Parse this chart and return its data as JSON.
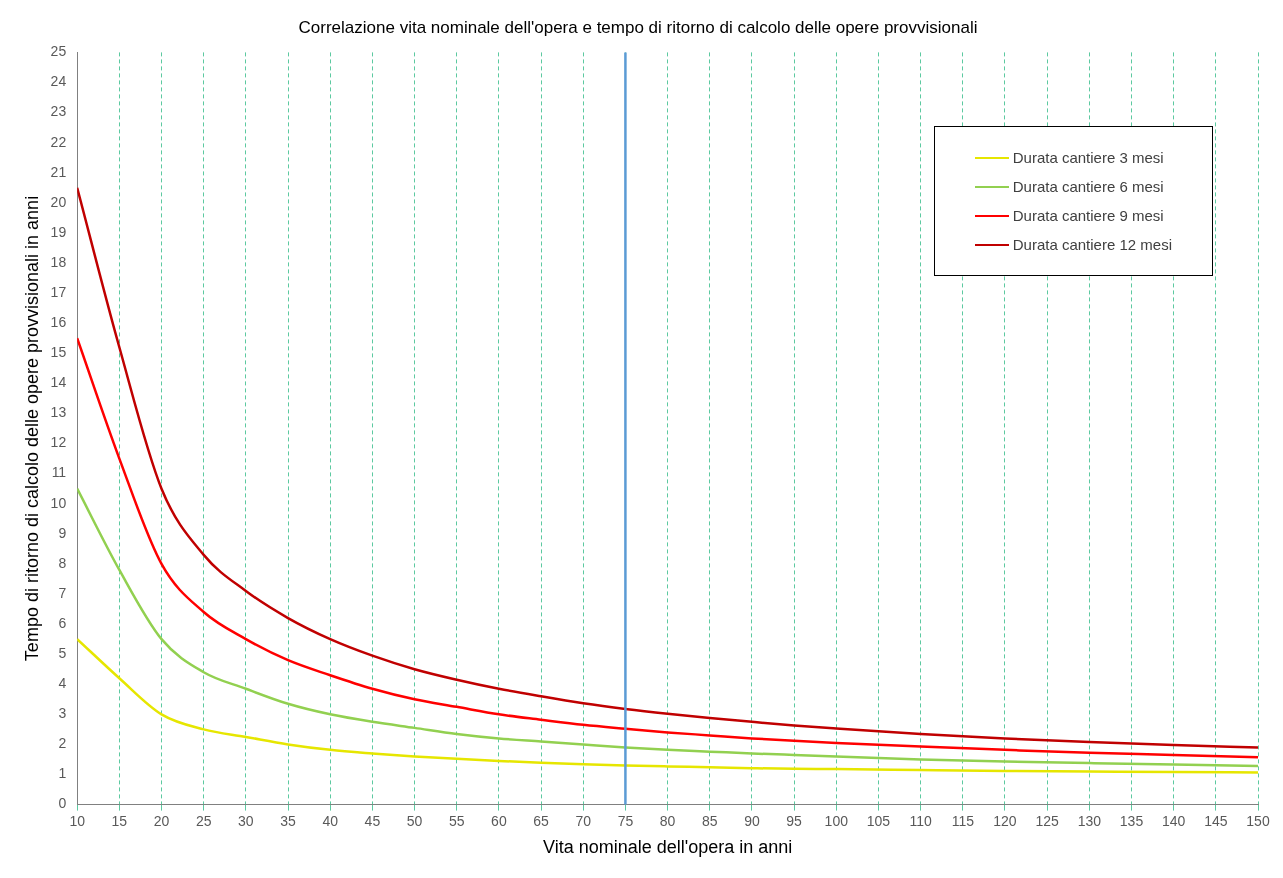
{
  "chart_data": {
    "type": "line",
    "title": "Correlazione vita nominale dell'opera e tempo di ritorno di calcolo delle opere provvisionali",
    "xlabel": "Vita nominale dell'opera in anni",
    "ylabel": "Tempo di ritorno di calcolo delle opere provvisionali in anni",
    "x": [
      10,
      15,
      20,
      25,
      30,
      35,
      40,
      45,
      50,
      55,
      60,
      65,
      70,
      75,
      80,
      85,
      90,
      95,
      100,
      110,
      120,
      130,
      140,
      150
    ],
    "series": [
      {
        "name": "Durata cantiere 3 mesi",
        "color": "#e6e600",
        "values": [
          5.5,
          4.2,
          3.0,
          2.5,
          2.25,
          2.0,
          1.82,
          1.7,
          1.6,
          1.52,
          1.45,
          1.39,
          1.34,
          1.3,
          1.27,
          1.24,
          1.21,
          1.19,
          1.18,
          1.15,
          1.12,
          1.1,
          1.08,
          1.07
        ]
      },
      {
        "name": "Durata cantiere 6 mesi",
        "color": "#92d050",
        "values": [
          10.5,
          7.8,
          5.5,
          4.4,
          3.85,
          3.35,
          3.0,
          2.75,
          2.55,
          2.35,
          2.2,
          2.1,
          2.0,
          1.9,
          1.82,
          1.76,
          1.7,
          1.65,
          1.6,
          1.5,
          1.43,
          1.38,
          1.33,
          1.28
        ]
      },
      {
        "name": "Durata cantiere 9 mesi",
        "color": "#ff0000",
        "values": [
          15.5,
          11.5,
          8.0,
          6.4,
          5.5,
          4.8,
          4.3,
          3.85,
          3.5,
          3.25,
          3.0,
          2.82,
          2.65,
          2.52,
          2.4,
          2.3,
          2.2,
          2.12,
          2.05,
          1.93,
          1.82,
          1.72,
          1.65,
          1.57
        ]
      },
      {
        "name": "Durata cantiere 12 mesi",
        "color": "#c00000",
        "values": [
          20.5,
          15.2,
          10.5,
          8.3,
          7.1,
          6.2,
          5.5,
          4.95,
          4.5,
          4.15,
          3.85,
          3.6,
          3.37,
          3.18,
          3.02,
          2.88,
          2.75,
          2.63,
          2.53,
          2.35,
          2.2,
          2.08,
          1.98,
          1.9
        ]
      }
    ],
    "xlim": [
      10,
      150
    ],
    "xticks": [
      10,
      15,
      20,
      25,
      30,
      35,
      40,
      45,
      50,
      55,
      60,
      65,
      70,
      75,
      80,
      85,
      90,
      95,
      100,
      105,
      110,
      115,
      120,
      125,
      130,
      135,
      140,
      145,
      150
    ],
    "ylim": [
      0,
      25
    ],
    "yticks": [
      0,
      1,
      2,
      3,
      4,
      5,
      6,
      7,
      8,
      9,
      10,
      11,
      12,
      13,
      14,
      15,
      16,
      17,
      18,
      19,
      20,
      21,
      22,
      23,
      24,
      25
    ],
    "ref_lines": [
      {
        "axis": "x",
        "value": 75,
        "color": "#5b9bd5"
      }
    ],
    "grid": "x",
    "legend": "top right",
    "marker": "none",
    "line_style": "solid"
  }
}
